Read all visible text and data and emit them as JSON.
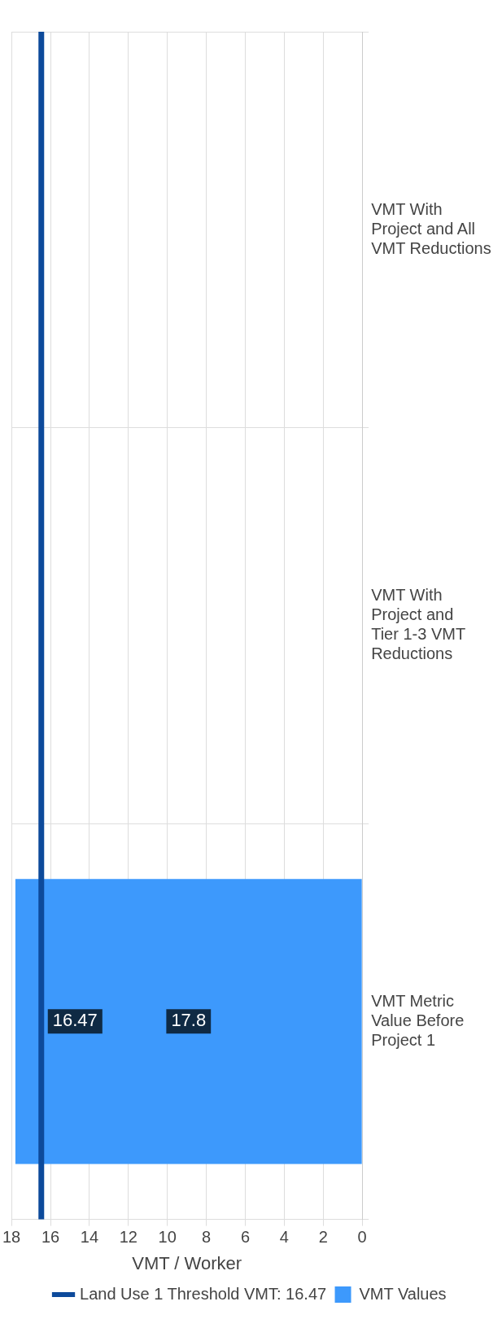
{
  "chart_data": {
    "type": "bar",
    "orientation": "horizontal",
    "xlabel": "VMT / Worker",
    "categories": [
      "VMT With Project and All VMT Reductions",
      "VMT With Project and Tier 1-3 VMT Reductions",
      "VMT Metric Value Before Project 1"
    ],
    "series": [
      {
        "name": "VMT Values",
        "color": "#3d99fc",
        "values": [
          null,
          null,
          17.8
        ]
      }
    ],
    "xlim": [
      18,
      0
    ],
    "xticks": [
      18,
      16,
      14,
      12,
      10,
      8,
      6,
      4,
      2,
      0
    ],
    "ref_lines": [
      {
        "axis": "x",
        "value": 16.47,
        "label": "Land Use 1 Threshold VMT: 16.47",
        "color": "#0d4a9b",
        "line_style": "solid"
      }
    ],
    "annotations": [
      {
        "text": "16.47",
        "x": 16.47,
        "y": "VMT Metric Value Before Project 1"
      }
    ],
    "data_labels": true,
    "grid": true,
    "legend": "bottom"
  }
}
